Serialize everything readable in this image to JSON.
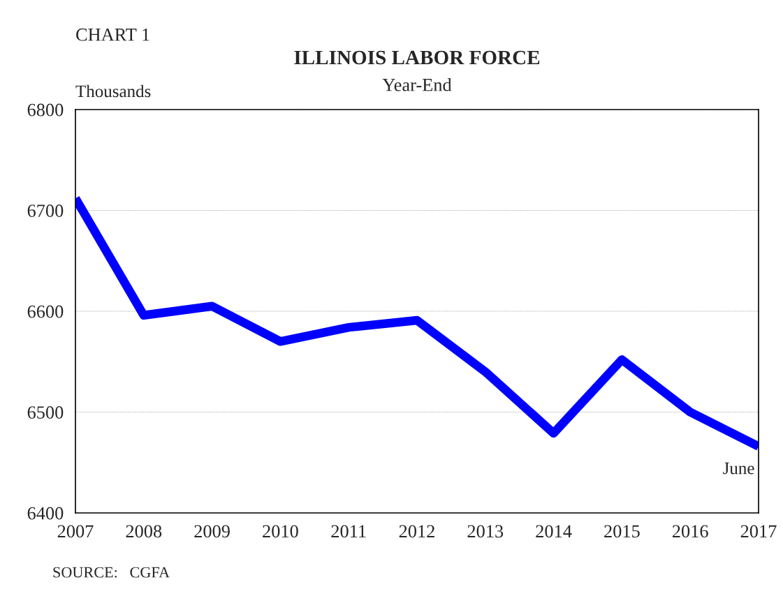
{
  "chart_data": {
    "type": "line",
    "title": "ILLINOIS LABOR FORCE",
    "subtitle": "Year-End",
    "ylabel": "Thousands",
    "x": [
      2007,
      2008,
      2009,
      2010,
      2011,
      2012,
      2013,
      2014,
      2015,
      2016,
      2017
    ],
    "series": [
      {
        "color": "#0000ff",
        "values": [
          6712,
          6596,
          6605,
          6570,
          6584,
          6591,
          6540,
          6479,
          6552,
          6500,
          6466
        ]
      }
    ],
    "xlim": [
      2007,
      2017
    ],
    "xticks": [
      2007,
      2008,
      2009,
      2010,
      2011,
      2012,
      2013,
      2014,
      2015,
      2016,
      2017
    ],
    "ylim": [
      6400,
      6800
    ],
    "yticks": [
      6400,
      6500,
      6600,
      6700,
      6800
    ],
    "grid": "y",
    "marker": "none",
    "line_style": "solid",
    "legend": false,
    "annotations": [
      "CHART 1",
      {
        "text": "June",
        "x": 2017,
        "y": 6466
      },
      "SOURCE:   CGFA"
    ]
  }
}
